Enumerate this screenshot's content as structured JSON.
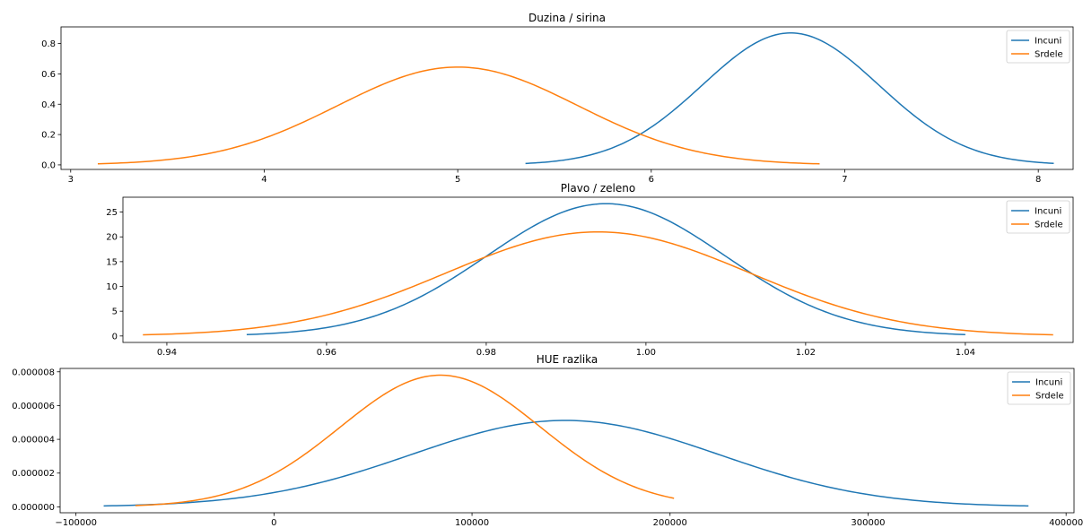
{
  "chart_data": [
    {
      "type": "line",
      "title": "Duzina / sirina",
      "xlabel": "",
      "ylabel": "",
      "xlim": [
        2.95,
        8.18
      ],
      "ylim": [
        -0.03,
        0.91
      ],
      "xticks": [
        3,
        4,
        5,
        6,
        7,
        8
      ],
      "xtick_labels": [
        "3",
        "4",
        "5",
        "6",
        "7",
        "8"
      ],
      "yticks": [
        0.0,
        0.2,
        0.4,
        0.6,
        0.8
      ],
      "ytick_labels": [
        "0.0",
        "0.2",
        "0.4",
        "0.6",
        "0.8"
      ],
      "legend": "top-right",
      "grid": false,
      "series": [
        {
          "name": "Incuni",
          "color": "#1f77b4",
          "curve": "gaussian",
          "mean": 6.72,
          "std": 0.455,
          "peak": 0.87,
          "x_range": [
            5.35,
            8.08
          ]
        },
        {
          "name": "Srdele",
          "color": "#ff7f0e",
          "curve": "gaussian",
          "mean": 5.0,
          "std": 0.62,
          "peak": 0.645,
          "x_range": [
            3.14,
            6.87
          ]
        }
      ]
    },
    {
      "type": "line",
      "title": "Plavo / zeleno",
      "xlabel": "",
      "ylabel": "",
      "xlim": [
        0.9345,
        1.0535
      ],
      "ylim": [
        -1.3,
        28.0
      ],
      "xticks": [
        0.94,
        0.96,
        0.98,
        1.0,
        1.02,
        1.04
      ],
      "xtick_labels": [
        "0.94",
        "0.96",
        "0.98",
        "1.00",
        "1.02",
        "1.04"
      ],
      "yticks": [
        0,
        5,
        10,
        15,
        20,
        25
      ],
      "ytick_labels": [
        "0",
        "5",
        "10",
        "15",
        "20",
        "25"
      ],
      "legend": "top-right",
      "grid": false,
      "series": [
        {
          "name": "Incuni",
          "color": "#1f77b4",
          "curve": "gaussian",
          "mean": 0.995,
          "std": 0.0149,
          "peak": 26.7,
          "x_range": [
            0.95,
            1.04
          ]
        },
        {
          "name": "Srdele",
          "color": "#ff7f0e",
          "curve": "gaussian",
          "mean": 0.994,
          "std": 0.019,
          "peak": 21.0,
          "x_range": [
            0.937,
            1.051
          ]
        }
      ]
    },
    {
      "type": "line",
      "title": "HUE razlika",
      "xlabel": "",
      "ylabel": "",
      "xlim": [
        -108000,
        404000
      ],
      "ylim": [
        -3.5e-07,
        8.2e-06
      ],
      "xticks": [
        -100000,
        0,
        100000,
        200000,
        300000,
        400000
      ],
      "xtick_labels": [
        "−100000",
        "0",
        "100000",
        "200000",
        "300000",
        "400000"
      ],
      "yticks": [
        0.0,
        2e-06,
        4e-06,
        6e-06,
        8e-06
      ],
      "ytick_labels": [
        "0.000000",
        "0.000002",
        "0.000004",
        "0.000006",
        "0.000008"
      ],
      "legend": "top-right",
      "grid": false,
      "series": [
        {
          "name": "Incuni",
          "color": "#1f77b4",
          "curve": "gaussian",
          "mean": 147000,
          "std": 77500,
          "peak": 5.12e-06,
          "x_range": [
            -86000,
            381000
          ]
        },
        {
          "name": "Srdele",
          "color": "#ff7f0e",
          "curve": "gaussian",
          "mean": 84000,
          "std": 50500,
          "peak": 7.8e-06,
          "x_range": [
            -70000,
            202000
          ]
        }
      ]
    }
  ]
}
